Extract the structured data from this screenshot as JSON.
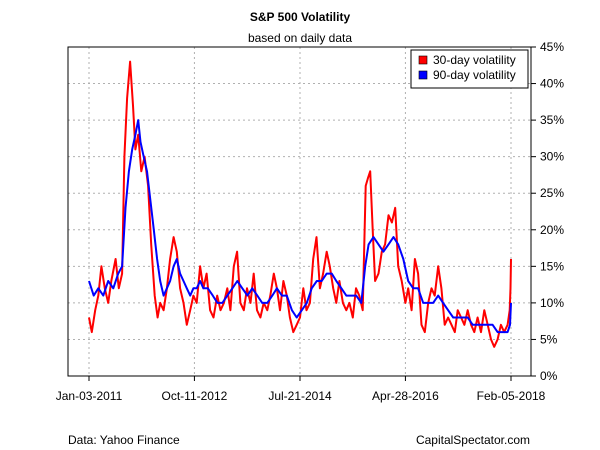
{
  "header": {
    "title": "S&P 500 Volatility",
    "subtitle": "based on daily data"
  },
  "footer": {
    "source": "Data: Yahoo Finance",
    "brand": "CapitalSpectator.com"
  },
  "colors": {
    "series_30": "#ff0000",
    "series_90": "#0000ff",
    "grid": "#b0b0b0",
    "axis": "#000000"
  },
  "chart_data": {
    "type": "line",
    "title": "S&P 500 Volatility",
    "subtitle": "based on daily data",
    "xlabel": "",
    "ylabel": "",
    "x_ticks": [
      "Jan-03-2011",
      "Oct-11-2012",
      "Jul-21-2014",
      "Apr-28-2016",
      "Feb-05-2018"
    ],
    "x_range": [
      "2011-01-03",
      "2018-02-05"
    ],
    "y_ticks": [
      "0%",
      "5%",
      "10%",
      "15%",
      "20%",
      "25%",
      "30%",
      "35%",
      "40%",
      "45%"
    ],
    "ylim": [
      0,
      45
    ],
    "y_unit": "%",
    "grid": true,
    "legend": "top-right",
    "series": [
      {
        "name": "30-day volatility",
        "color": "#ff0000",
        "points": [
          [
            "2011-01-03",
            8
          ],
          [
            "2011-01-20",
            6
          ],
          [
            "2011-02-10",
            9
          ],
          [
            "2011-03-01",
            11
          ],
          [
            "2011-03-20",
            15
          ],
          [
            "2011-04-10",
            12
          ],
          [
            "2011-05-01",
            10
          ],
          [
            "2011-05-20",
            13
          ],
          [
            "2011-06-15",
            16
          ],
          [
            "2011-07-05",
            12
          ],
          [
            "2011-07-25",
            14
          ],
          [
            "2011-08-08",
            30
          ],
          [
            "2011-08-25",
            38
          ],
          [
            "2011-09-12",
            43
          ],
          [
            "2011-09-30",
            37
          ],
          [
            "2011-10-15",
            31
          ],
          [
            "2011-11-01",
            33
          ],
          [
            "2011-11-20",
            28
          ],
          [
            "2011-12-10",
            30
          ],
          [
            "2012-01-01",
            26
          ],
          [
            "2012-01-20",
            18
          ],
          [
            "2012-02-10",
            11
          ],
          [
            "2012-02-28",
            8
          ],
          [
            "2012-03-15",
            10
          ],
          [
            "2012-04-05",
            9
          ],
          [
            "2012-04-25",
            12
          ],
          [
            "2012-05-15",
            16
          ],
          [
            "2012-06-05",
            19
          ],
          [
            "2012-06-25",
            17
          ],
          [
            "2012-07-15",
            12
          ],
          [
            "2012-08-05",
            10
          ],
          [
            "2012-08-25",
            7
          ],
          [
            "2012-09-15",
            9
          ],
          [
            "2012-10-05",
            11
          ],
          [
            "2012-10-25",
            10
          ],
          [
            "2012-11-15",
            15
          ],
          [
            "2012-12-05",
            12
          ],
          [
            "2012-12-25",
            14
          ],
          [
            "2013-01-15",
            9
          ],
          [
            "2013-02-05",
            8
          ],
          [
            "2013-02-28",
            11
          ],
          [
            "2013-03-20",
            9
          ],
          [
            "2013-04-10",
            10
          ],
          [
            "2013-05-01",
            12
          ],
          [
            "2013-05-20",
            9
          ],
          [
            "2013-06-10",
            15
          ],
          [
            "2013-06-30",
            17
          ],
          [
            "2013-07-20",
            10
          ],
          [
            "2013-08-10",
            9
          ],
          [
            "2013-08-30",
            12
          ],
          [
            "2013-09-20",
            10
          ],
          [
            "2013-10-10",
            14
          ],
          [
            "2013-10-30",
            9
          ],
          [
            "2013-11-20",
            8
          ],
          [
            "2013-12-10",
            10
          ],
          [
            "2014-01-01",
            9
          ],
          [
            "2014-01-20",
            11
          ],
          [
            "2014-02-10",
            14
          ],
          [
            "2014-03-01",
            12
          ],
          [
            "2014-03-20",
            9
          ],
          [
            "2014-04-10",
            13
          ],
          [
            "2014-05-01",
            11
          ],
          [
            "2014-05-20",
            8
          ],
          [
            "2014-06-10",
            6
          ],
          [
            "2014-07-01",
            7
          ],
          [
            "2014-07-21",
            8
          ],
          [
            "2014-08-10",
            12
          ],
          [
            "2014-08-30",
            9
          ],
          [
            "2014-09-20",
            10
          ],
          [
            "2014-10-10",
            16
          ],
          [
            "2014-10-30",
            19
          ],
          [
            "2014-11-20",
            12
          ],
          [
            "2014-12-10",
            14
          ],
          [
            "2015-01-01",
            17
          ],
          [
            "2015-01-20",
            15
          ],
          [
            "2015-02-10",
            12
          ],
          [
            "2015-03-01",
            10
          ],
          [
            "2015-03-20",
            13
          ],
          [
            "2015-04-10",
            10
          ],
          [
            "2015-05-01",
            9
          ],
          [
            "2015-05-20",
            10
          ],
          [
            "2015-06-10",
            8
          ],
          [
            "2015-06-30",
            12
          ],
          [
            "2015-07-20",
            11
          ],
          [
            "2015-08-10",
            9
          ],
          [
            "2015-08-28",
            26
          ],
          [
            "2015-09-10",
            27
          ],
          [
            "2015-09-25",
            28
          ],
          [
            "2015-10-10",
            20
          ],
          [
            "2015-10-25",
            13
          ],
          [
            "2015-11-15",
            14
          ],
          [
            "2015-12-05",
            17
          ],
          [
            "2015-12-25",
            18
          ],
          [
            "2016-01-15",
            22
          ],
          [
            "2016-02-05",
            21
          ],
          [
            "2016-02-25",
            23
          ],
          [
            "2016-03-15",
            15
          ],
          [
            "2016-04-05",
            13
          ],
          [
            "2016-04-28",
            10
          ],
          [
            "2016-05-15",
            12
          ],
          [
            "2016-06-05",
            9
          ],
          [
            "2016-06-25",
            16
          ],
          [
            "2016-07-15",
            14
          ],
          [
            "2016-08-05",
            7
          ],
          [
            "2016-08-25",
            6
          ],
          [
            "2016-09-15",
            10
          ],
          [
            "2016-10-05",
            12
          ],
          [
            "2016-10-25",
            11
          ],
          [
            "2016-11-15",
            15
          ],
          [
            "2016-12-05",
            12
          ],
          [
            "2016-12-25",
            7
          ],
          [
            "2017-01-15",
            8
          ],
          [
            "2017-02-05",
            7
          ],
          [
            "2017-02-25",
            6
          ],
          [
            "2017-03-15",
            9
          ],
          [
            "2017-04-05",
            8
          ],
          [
            "2017-04-25",
            7
          ],
          [
            "2017-05-15",
            9
          ],
          [
            "2017-06-05",
            7
          ],
          [
            "2017-06-25",
            6
          ],
          [
            "2017-07-15",
            8
          ],
          [
            "2017-08-05",
            6
          ],
          [
            "2017-08-25",
            9
          ],
          [
            "2017-09-15",
            7
          ],
          [
            "2017-10-05",
            5
          ],
          [
            "2017-10-25",
            4
          ],
          [
            "2017-11-15",
            5
          ],
          [
            "2017-12-05",
            7
          ],
          [
            "2017-12-25",
            6
          ],
          [
            "2018-01-15",
            7
          ],
          [
            "2018-01-28",
            9
          ],
          [
            "2018-02-02",
            12
          ],
          [
            "2018-02-05",
            16
          ]
        ]
      },
      {
        "name": "90-day volatility",
        "color": "#0000ff",
        "points": [
          [
            "2011-01-03",
            13
          ],
          [
            "2011-02-01",
            11
          ],
          [
            "2011-03-01",
            12
          ],
          [
            "2011-04-01",
            11
          ],
          [
            "2011-05-01",
            13
          ],
          [
            "2011-06-01",
            12
          ],
          [
            "2011-07-01",
            14
          ],
          [
            "2011-07-25",
            15
          ],
          [
            "2011-08-15",
            23
          ],
          [
            "2011-09-05",
            28
          ],
          [
            "2011-09-25",
            31
          ],
          [
            "2011-10-15",
            33
          ],
          [
            "2011-11-01",
            35
          ],
          [
            "2011-11-15",
            32
          ],
          [
            "2011-12-05",
            30
          ],
          [
            "2011-12-25",
            28
          ],
          [
            "2012-01-15",
            24
          ],
          [
            "2012-02-05",
            20
          ],
          [
            "2012-02-25",
            16
          ],
          [
            "2012-03-15",
            13
          ],
          [
            "2012-04-05",
            11
          ],
          [
            "2012-04-25",
            12
          ],
          [
            "2012-05-15",
            13
          ],
          [
            "2012-06-05",
            15
          ],
          [
            "2012-06-25",
            16
          ],
          [
            "2012-07-15",
            14
          ],
          [
            "2012-08-05",
            13
          ],
          [
            "2012-08-25",
            12
          ],
          [
            "2012-09-15",
            11
          ],
          [
            "2012-10-05",
            12
          ],
          [
            "2012-10-25",
            12
          ],
          [
            "2012-11-15",
            13
          ],
          [
            "2012-12-05",
            12
          ],
          [
            "2013-01-01",
            12
          ],
          [
            "2013-02-01",
            11
          ],
          [
            "2013-03-01",
            10
          ],
          [
            "2013-04-01",
            10
          ],
          [
            "2013-05-01",
            11
          ],
          [
            "2013-06-01",
            12
          ],
          [
            "2013-07-01",
            13
          ],
          [
            "2013-08-01",
            12
          ],
          [
            "2013-09-01",
            11
          ],
          [
            "2013-10-01",
            12
          ],
          [
            "2013-11-01",
            11
          ],
          [
            "2013-12-01",
            10
          ],
          [
            "2014-01-01",
            10
          ],
          [
            "2014-02-01",
            11
          ],
          [
            "2014-03-01",
            12
          ],
          [
            "2014-04-01",
            11
          ],
          [
            "2014-05-01",
            11
          ],
          [
            "2014-06-01",
            9
          ],
          [
            "2014-07-01",
            8
          ],
          [
            "2014-08-01",
            9
          ],
          [
            "2014-09-01",
            10
          ],
          [
            "2014-10-01",
            12
          ],
          [
            "2014-11-01",
            13
          ],
          [
            "2014-12-01",
            13
          ],
          [
            "2015-01-01",
            14
          ],
          [
            "2015-02-01",
            14
          ],
          [
            "2015-03-01",
            13
          ],
          [
            "2015-04-01",
            12
          ],
          [
            "2015-05-01",
            11
          ],
          [
            "2015-06-01",
            11
          ],
          [
            "2015-07-01",
            11
          ],
          [
            "2015-08-01",
            10
          ],
          [
            "2015-08-25",
            15
          ],
          [
            "2015-09-15",
            18
          ],
          [
            "2015-10-15",
            19
          ],
          [
            "2015-11-15",
            18
          ],
          [
            "2015-12-15",
            17
          ],
          [
            "2016-01-15",
            18
          ],
          [
            "2016-02-15",
            19
          ],
          [
            "2016-03-15",
            18
          ],
          [
            "2016-04-15",
            16
          ],
          [
            "2016-05-15",
            13
          ],
          [
            "2016-06-15",
            12
          ],
          [
            "2016-07-15",
            12
          ],
          [
            "2016-08-15",
            10
          ],
          [
            "2016-09-15",
            10
          ],
          [
            "2016-10-15",
            10
          ],
          [
            "2016-11-15",
            11
          ],
          [
            "2016-12-15",
            10
          ],
          [
            "2017-01-15",
            9
          ],
          [
            "2017-02-15",
            8
          ],
          [
            "2017-03-15",
            8
          ],
          [
            "2017-04-15",
            8
          ],
          [
            "2017-05-15",
            8
          ],
          [
            "2017-06-15",
            7
          ],
          [
            "2017-07-15",
            7
          ],
          [
            "2017-08-15",
            7
          ],
          [
            "2017-09-15",
            7
          ],
          [
            "2017-10-15",
            7
          ],
          [
            "2017-11-15",
            6
          ],
          [
            "2017-12-15",
            6
          ],
          [
            "2018-01-15",
            6
          ],
          [
            "2018-01-30",
            7
          ],
          [
            "2018-02-05",
            10
          ]
        ]
      }
    ]
  }
}
